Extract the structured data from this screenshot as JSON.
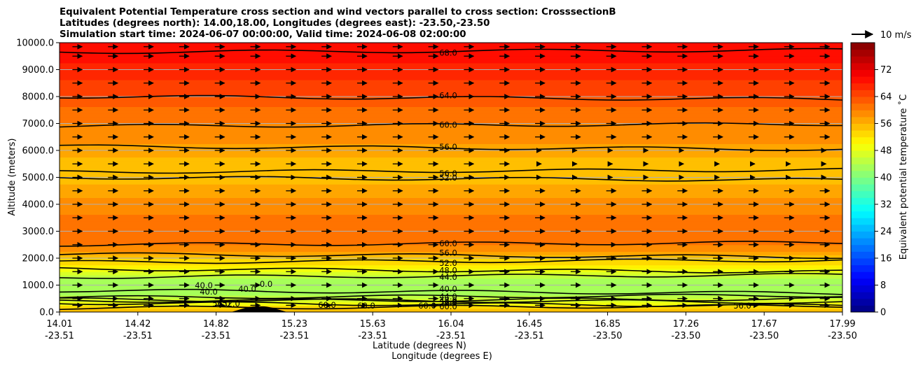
{
  "chart_data": {
    "type": "heatmap",
    "title_lines": [
      "Equivalent Potential Temperature cross section and wind vectors parallel to cross section: CrosssectionB",
      "Latitudes (degrees north): 14.00,18.00, Longitudes (degrees east): -23.50,-23.50",
      "Simulation start time: 2024-06-07 00:00:00, Valid time: 2024-06-08 02:00:00"
    ],
    "ylabel": "Altitude (meters)",
    "xlabel_1": "Latitude (degrees N)",
    "xlabel_2": "Longitude (degrees E)",
    "ylim": [
      0,
      10000
    ],
    "y_ticks": [
      "0.0",
      "1000.0",
      "2000.0",
      "3000.0",
      "4000.0",
      "5000.0",
      "6000.0",
      "7000.0",
      "8000.0",
      "9000.0",
      "10000.0"
    ],
    "x_ticks": [
      {
        "lat": "14.01",
        "lon": "-23.51"
      },
      {
        "lat": "14.42",
        "lon": "-23.51"
      },
      {
        "lat": "14.82",
        "lon": "-23.51"
      },
      {
        "lat": "15.23",
        "lon": "-23.51"
      },
      {
        "lat": "15.63",
        "lon": "-23.51"
      },
      {
        "lat": "16.04",
        "lon": "-23.51"
      },
      {
        "lat": "16.45",
        "lon": "-23.51"
      },
      {
        "lat": "16.85",
        "lon": "-23.50"
      },
      {
        "lat": "17.26",
        "lon": "-23.50"
      },
      {
        "lat": "17.67",
        "lon": "-23.50"
      },
      {
        "lat": "17.99",
        "lon": "-23.50"
      }
    ],
    "colorbar": {
      "label": "Equivalent potential temperature ˚C",
      "min": 0,
      "max": 80,
      "step": 2,
      "ticks": [
        "0",
        "8",
        "16",
        "24",
        "32",
        "40",
        "48",
        "56",
        "64",
        "72"
      ]
    },
    "wind_key": "10 m/s",
    "theta_e_profile": [
      {
        "alt": 0,
        "value": 57
      },
      {
        "alt": 300,
        "value": 50
      },
      {
        "alt": 600,
        "value": 44
      },
      {
        "alt": 900,
        "value": 43
      },
      {
        "alt": 1200,
        "value": 44
      },
      {
        "alt": 1500,
        "value": 48
      },
      {
        "alt": 1800,
        "value": 52
      },
      {
        "alt": 2100,
        "value": 56
      },
      {
        "alt": 2500,
        "value": 60
      },
      {
        "alt": 3000,
        "value": 61
      },
      {
        "alt": 3600,
        "value": 60
      },
      {
        "alt": 4200,
        "value": 58
      },
      {
        "alt": 4800,
        "value": 56
      },
      {
        "alt": 5400,
        "value": 55
      },
      {
        "alt": 6000,
        "value": 57
      },
      {
        "alt": 6500,
        "value": 59
      },
      {
        "alt": 7000,
        "value": 60
      },
      {
        "alt": 7600,
        "value": 62
      },
      {
        "alt": 8000,
        "value": 64
      },
      {
        "alt": 8600,
        "value": 66
      },
      {
        "alt": 9200,
        "value": 68
      },
      {
        "alt": 10000,
        "value": 70
      }
    ],
    "contours": [
      {
        "label": "68.0",
        "alt": 9650
      },
      {
        "label": "64.0",
        "alt": 8000
      },
      {
        "label": "60.0",
        "alt": 6900
      },
      {
        "label": "56.0",
        "alt": 6150
      },
      {
        "label": "56.0",
        "alt": 5200
      },
      {
        "label": "52.0",
        "alt": 5000
      },
      {
        "label": "60.0",
        "alt": 2500
      },
      {
        "label": "56.0",
        "alt": 2150
      },
      {
        "label": "52.0",
        "alt": 1850
      },
      {
        "label": "48.0",
        "alt": 1600
      },
      {
        "label": "44.0",
        "alt": 1300
      },
      {
        "label": "40.0",
        "alt": 800
      },
      {
        "label": "44.0",
        "alt": 540
      },
      {
        "label": "48.0",
        "alt": 470
      },
      {
        "label": "52.0",
        "alt": 410
      },
      {
        "label": "56.0",
        "alt": 340
      },
      {
        "label": "60.0",
        "alt": 150
      }
    ],
    "inline_labels": [
      "40.0",
      "40.0",
      "40.0",
      "0.0",
      "52.0",
      "56.0",
      "60.0",
      "60.0",
      "60.0",
      "56.0"
    ],
    "wind_rows": [
      {
        "alt": 250,
        "start_x": 14.01,
        "end_x": 17.99,
        "dir": "right"
      },
      {
        "alt": 500,
        "start_x": 14.01,
        "end_x": 17.99,
        "dir": "right"
      },
      {
        "alt": 1000,
        "start_x": 14.01,
        "end_x": 17.99,
        "dir": "right"
      },
      {
        "alt": 1500,
        "start_x": 14.01,
        "end_x": 17.99,
        "dir": "right"
      },
      {
        "alt": 2000,
        "start_x": 14.01,
        "end_x": 17.99,
        "dir": "right"
      },
      {
        "alt": 2500,
        "start_x": 14.01,
        "end_x": 17.99,
        "dir": "right"
      },
      {
        "alt": 3000,
        "start_x": 14.01,
        "end_x": 17.99,
        "dir": "right"
      },
      {
        "alt": 3500,
        "start_x": 14.01,
        "end_x": 17.99,
        "dir": "right"
      },
      {
        "alt": 4000,
        "start_x": 14.01,
        "end_x": 17.99,
        "dir": "right"
      },
      {
        "alt": 4500,
        "start_x": 14.01,
        "end_x": 17.99,
        "dir": "right"
      },
      {
        "alt": 5000,
        "start_x": 14.01,
        "end_x": 17.99,
        "dir": "right"
      },
      {
        "alt": 5500,
        "start_x": 14.01,
        "end_x": 17.99,
        "dir": "right"
      },
      {
        "alt": 6000,
        "start_x": 14.01,
        "end_x": 17.99,
        "dir": "right"
      },
      {
        "alt": 6500,
        "start_x": 14.01,
        "end_x": 17.99,
        "dir": "right"
      },
      {
        "alt": 7000,
        "start_x": 14.01,
        "end_x": 17.99,
        "dir": "right"
      },
      {
        "alt": 7500,
        "start_x": 14.01,
        "end_x": 17.99,
        "dir": "right"
      },
      {
        "alt": 8000,
        "start_x": 14.01,
        "end_x": 17.99,
        "dir": "right"
      },
      {
        "alt": 8500,
        "start_x": 14.01,
        "end_x": 17.99,
        "dir": "right"
      },
      {
        "alt": 9000,
        "start_x": 14.01,
        "end_x": 17.99,
        "dir": "right"
      },
      {
        "alt": 9500,
        "start_x": 14.01,
        "end_x": 17.99,
        "dir": "right"
      },
      {
        "alt": 9850,
        "start_x": 14.01,
        "end_x": 17.99,
        "dir": "right"
      }
    ]
  }
}
